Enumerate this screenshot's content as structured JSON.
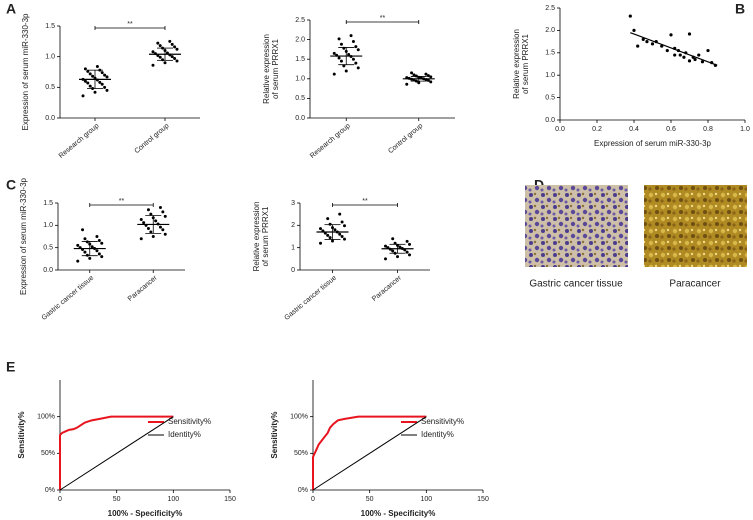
{
  "panels": [
    "A",
    "B",
    "C",
    "D",
    "E"
  ],
  "panel_d": {
    "captions": [
      "Gastric cancer tissue",
      "Paracancer"
    ]
  },
  "chart_data": [
    {
      "type": "dot",
      "ylabel": [
        "Expression of serum miR-330-3p"
      ],
      "categories": [
        "Research group",
        "Control group"
      ],
      "color": "#000000",
      "annotation": "**",
      "groups": [
        {
          "values": [
            0.36,
            0.42,
            0.45,
            0.48,
            0.5,
            0.52,
            0.55,
            0.57,
            0.58,
            0.6,
            0.62,
            0.63,
            0.65,
            0.67,
            0.68,
            0.7,
            0.72,
            0.74,
            0.76,
            0.78,
            0.8,
            0.84
          ],
          "mean": 0.63,
          "sd": 0.15
        },
        {
          "values": [
            0.86,
            0.9,
            0.93,
            0.95,
            0.97,
            0.99,
            1.0,
            1.02,
            1.03,
            1.05,
            1.06,
            1.08,
            1.1,
            1.12,
            1.14,
            1.16,
            1.18,
            1.2,
            1.22,
            1.25
          ],
          "mean": 1.04,
          "sd": 0.1
        }
      ],
      "ylim": [
        0,
        1.5
      ],
      "yticks": [
        {
          "value": 0,
          "label": "0.0"
        },
        {
          "value": 0.5,
          "label": "0.5"
        },
        {
          "value": 1,
          "label": "1.0"
        },
        {
          "value": 1.5,
          "label": "1.5"
        }
      ]
    },
    {
      "type": "dot",
      "ylabel": [
        "Relative expression",
        "of serum PRRX1"
      ],
      "categories": [
        "Research group",
        "Control group"
      ],
      "color": "#000000",
      "annotation": "**",
      "groups": [
        {
          "values": [
            1.12,
            1.2,
            1.28,
            1.33,
            1.4,
            1.45,
            1.5,
            1.53,
            1.57,
            1.6,
            1.62,
            1.65,
            1.7,
            1.74,
            1.78,
            1.82,
            1.88,
            1.95,
            2.02,
            2.1
          ],
          "mean": 1.58,
          "sd": 0.22
        },
        {
          "values": [
            0.86,
            0.9,
            0.92,
            0.94,
            0.96,
            0.97,
            0.98,
            0.99,
            1.0,
            1.01,
            1.02,
            1.03,
            1.04,
            1.05,
            1.07,
            1.08,
            1.1,
            1.12,
            1.15
          ],
          "mean": 1.0,
          "sd": 0.06
        }
      ],
      "ylim": [
        0,
        2.5
      ],
      "yticks": [
        {
          "value": 0,
          "label": "0.0"
        },
        {
          "value": 0.5,
          "label": "0.5"
        },
        {
          "value": 1,
          "label": "1.0"
        },
        {
          "value": 1.5,
          "label": "1.5"
        },
        {
          "value": 2,
          "label": "2.0"
        },
        {
          "value": 2.5,
          "label": "2.5"
        }
      ]
    },
    {
      "type": "scatter",
      "xlabel": "Expression of serum miR-330-3p",
      "ylabel": [
        "Relative expression",
        "of serum PRRX1"
      ],
      "color": "#000000",
      "x": [
        0.38,
        0.4,
        0.42,
        0.45,
        0.47,
        0.5,
        0.52,
        0.55,
        0.58,
        0.6,
        0.62,
        0.64,
        0.65,
        0.67,
        0.68,
        0.7,
        0.72,
        0.73,
        0.75,
        0.77,
        0.8,
        0.82,
        0.84,
        0.7,
        0.62
      ],
      "values": [
        2.32,
        2.0,
        1.65,
        1.8,
        1.75,
        1.7,
        1.75,
        1.65,
        1.55,
        1.9,
        1.6,
        1.55,
        1.45,
        1.4,
        1.5,
        1.92,
        1.4,
        1.35,
        1.45,
        1.3,
        1.55,
        1.28,
        1.22,
        1.32,
        1.45
      ],
      "fit": {
        "x": [
          0.38,
          0.85
        ],
        "y": [
          1.95,
          1.22
        ]
      },
      "xlim": [
        0,
        1
      ],
      "xticks": [
        {
          "value": 0,
          "label": "0.0"
        },
        {
          "value": 0.2,
          "label": "0.2"
        },
        {
          "value": 0.4,
          "label": "0.4"
        },
        {
          "value": 0.6,
          "label": "0.6"
        },
        {
          "value": 0.8,
          "label": "0.8"
        },
        {
          "value": 1,
          "label": "1.0"
        }
      ],
      "ylim": [
        0,
        2.5
      ],
      "yticks": [
        {
          "value": 0,
          "label": "0.0"
        },
        {
          "value": 0.5,
          "label": "0.5"
        },
        {
          "value": 1,
          "label": "1.0"
        },
        {
          "value": 1.5,
          "label": "1.5"
        },
        {
          "value": 2,
          "label": "2.0"
        },
        {
          "value": 2.5,
          "label": "2.5"
        }
      ]
    },
    {
      "type": "dot",
      "ylabel": [
        "Expression of serum miR-330-3p"
      ],
      "categories": [
        "Gastric cancer tissue",
        "Paracancer"
      ],
      "color": "#000000",
      "annotation": "**",
      "groups": [
        {
          "values": [
            0.2,
            0.26,
            0.3,
            0.33,
            0.36,
            0.4,
            0.43,
            0.46,
            0.48,
            0.5,
            0.52,
            0.55,
            0.58,
            0.6,
            0.63,
            0.66,
            0.7,
            0.75,
            0.9
          ],
          "mean": 0.48,
          "sd": 0.16
        },
        {
          "values": [
            0.7,
            0.75,
            0.8,
            0.85,
            0.9,
            0.93,
            0.96,
            1.0,
            1.03,
            1.06,
            1.1,
            1.13,
            1.17,
            1.2,
            1.25,
            1.3,
            1.35,
            1.4
          ],
          "mean": 1.02,
          "sd": 0.2
        }
      ],
      "ylim": [
        0,
        1.5
      ],
      "yticks": [
        {
          "value": 0,
          "label": "0.0"
        },
        {
          "value": 0.5,
          "label": "0.5"
        },
        {
          "value": 1,
          "label": "1.0"
        },
        {
          "value": 1.5,
          "label": "1.5"
        }
      ]
    },
    {
      "type": "dot",
      "ylabel": [
        "Relative expression",
        "of serum PRRX1"
      ],
      "categories": [
        "Gastric cancer tissue",
        "Paracancer"
      ],
      "color": "#000000",
      "annotation": "**",
      "groups": [
        {
          "values": [
            1.2,
            1.3,
            1.38,
            1.45,
            1.5,
            1.55,
            1.6,
            1.65,
            1.7,
            1.75,
            1.8,
            1.85,
            1.9,
            1.98,
            2.05,
            2.15,
            2.3,
            2.5
          ],
          "mean": 1.7,
          "sd": 0.33
        },
        {
          "values": [
            0.5,
            0.6,
            0.68,
            0.75,
            0.8,
            0.85,
            0.9,
            0.93,
            0.96,
            1.0,
            1.03,
            1.07,
            1.1,
            1.15,
            1.2,
            1.28,
            1.4
          ],
          "mean": 0.95,
          "sd": 0.2
        }
      ],
      "ylim": [
        0,
        3
      ],
      "yticks": [
        0,
        1,
        2,
        3
      ]
    },
    {
      "type": "line",
      "xlabel": "100% - Specificity%",
      "ylabel": "Sensitivity%",
      "legend": "lower right",
      "series": [
        {
          "name": "Sensitivity%",
          "color": "#e8141e",
          "x": [
            0,
            0,
            2,
            5,
            8,
            12,
            15,
            18,
            22,
            28,
            35,
            45,
            100
          ],
          "values": [
            0,
            75,
            78,
            80,
            82,
            83,
            85,
            88,
            92,
            95,
            97,
            100,
            100
          ]
        },
        {
          "name": "Identity%",
          "color": "#000000",
          "x": [
            0,
            100
          ],
          "values": [
            0,
            100
          ]
        }
      ],
      "xlim": [
        0,
        150
      ],
      "xticks": [
        0,
        50,
        100,
        150
      ],
      "ylim": [
        0,
        150
      ],
      "yticks": [
        {
          "value": 0,
          "label": "0%"
        },
        {
          "value": 50,
          "label": "50%"
        },
        {
          "value": 100,
          "label": "100%"
        }
      ]
    },
    {
      "type": "line",
      "xlabel": "100% - Specificity%",
      "ylabel": "Sensitivity%",
      "legend": "lower right",
      "series": [
        {
          "name": "Sensitivity%",
          "color": "#e8141e",
          "x": [
            0,
            0,
            3,
            5,
            8,
            10,
            13,
            15,
            18,
            22,
            28,
            40,
            100
          ],
          "values": [
            0,
            45,
            55,
            62,
            68,
            72,
            78,
            85,
            90,
            95,
            97,
            100,
            100
          ]
        },
        {
          "name": "Identity%",
          "color": "#000000",
          "x": [
            0,
            100
          ],
          "values": [
            0,
            100
          ]
        }
      ],
      "xlim": [
        0,
        150
      ],
      "xticks": [
        0,
        50,
        100,
        150
      ],
      "ylim": [
        0,
        150
      ],
      "yticks": [
        {
          "value": 0,
          "label": "0%"
        },
        {
          "value": 50,
          "label": "50%"
        },
        {
          "value": 100,
          "label": "100%"
        }
      ]
    }
  ]
}
